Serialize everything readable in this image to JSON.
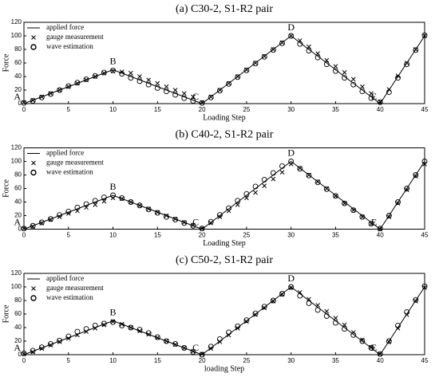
{
  "chart_data": [
    {
      "type": "line",
      "title": "(a) C30-2, S1-R2 pair",
      "x_label": "Loading Step",
      "y_label": "Force",
      "x": [
        0,
        1,
        2,
        3,
        4,
        5,
        6,
        7,
        8,
        9,
        10,
        11,
        12,
        13,
        14,
        15,
        16,
        17,
        18,
        19,
        20,
        21,
        22,
        23,
        24,
        25,
        26,
        27,
        28,
        29,
        30,
        31,
        32,
        33,
        34,
        35,
        36,
        37,
        38,
        39,
        40,
        41,
        42,
        43,
        44,
        45
      ],
      "series": [
        {
          "name": "applied force",
          "color": "#000000",
          "marker": "line",
          "values": [
            0,
            5,
            10,
            15,
            20,
            25,
            30,
            35,
            40,
            45,
            50,
            45,
            40,
            35,
            30,
            25,
            20,
            15,
            10,
            5,
            0,
            10,
            20,
            30,
            40,
            50,
            60,
            70,
            80,
            90,
            100,
            90,
            80,
            70,
            60,
            50,
            40,
            30,
            20,
            10,
            0,
            20,
            40,
            60,
            80,
            100
          ]
        },
        {
          "name": "gauge measurement",
          "color": "#000000",
          "marker": "x",
          "values": [
            2,
            5,
            10,
            15,
            20,
            25,
            30,
            35,
            40,
            45,
            48,
            47,
            45,
            40,
            35,
            30,
            25,
            20,
            15,
            10,
            2,
            10,
            20,
            30,
            40,
            50,
            60,
            70,
            80,
            90,
            100,
            93,
            84,
            74,
            64,
            55,
            46,
            36,
            25,
            15,
            3,
            21,
            41,
            60,
            80,
            100
          ]
        },
        {
          "name": "wave estimation",
          "color": "#000000",
          "marker": "o",
          "values": [
            1,
            4,
            9,
            14,
            20,
            26,
            31,
            36,
            41,
            46,
            49,
            44,
            38,
            33,
            28,
            23,
            18,
            13,
            8,
            4,
            1,
            9,
            19,
            29,
            39,
            49,
            59,
            69,
            79,
            89,
            100,
            88,
            78,
            68,
            58,
            48,
            38,
            28,
            18,
            8,
            2,
            17,
            38,
            58,
            79,
            101
          ]
        }
      ],
      "annotations": [
        {
          "text": "A",
          "x": 0,
          "y": 0
        },
        {
          "text": "B",
          "x": 10,
          "y": 50
        },
        {
          "text": "C",
          "x": 20,
          "y": 0
        },
        {
          "text": "D",
          "x": 30,
          "y": 100
        },
        {
          "text": "E",
          "x": 40,
          "y": 0
        }
      ],
      "xlim": [
        0,
        45
      ],
      "xticks": [
        0,
        5,
        10,
        15,
        20,
        25,
        30,
        35,
        40,
        45
      ],
      "ylim": [
        0,
        120
      ],
      "yticks": [
        0,
        20,
        40,
        60,
        80,
        100,
        120
      ],
      "legend": "upper left"
    },
    {
      "type": "line",
      "title": "(b) C40-2, S1-R2 pair",
      "x_label": "Loading Step",
      "y_label": "Force",
      "x": [
        0,
        1,
        2,
        3,
        4,
        5,
        6,
        7,
        8,
        9,
        10,
        11,
        12,
        13,
        14,
        15,
        16,
        17,
        18,
        19,
        20,
        21,
        22,
        23,
        24,
        25,
        26,
        27,
        28,
        29,
        30,
        31,
        32,
        33,
        34,
        35,
        36,
        37,
        38,
        39,
        40,
        41,
        42,
        43,
        44,
        45
      ],
      "series": [
        {
          "name": "applied force",
          "color": "#000000",
          "marker": "line",
          "values": [
            0,
            5,
            10,
            15,
            20,
            25,
            30,
            35,
            40,
            45,
            50,
            45,
            40,
            35,
            30,
            25,
            20,
            15,
            10,
            5,
            0,
            10,
            20,
            30,
            40,
            50,
            60,
            70,
            80,
            90,
            100,
            90,
            80,
            70,
            60,
            50,
            40,
            30,
            20,
            10,
            0,
            20,
            40,
            60,
            80,
            100
          ]
        },
        {
          "name": "gauge measurement",
          "color": "#000000",
          "marker": "x",
          "values": [
            1,
            4,
            9,
            14,
            18,
            23,
            27,
            32,
            36,
            41,
            46,
            45,
            40,
            35,
            30,
            25,
            20,
            15,
            10,
            6,
            1,
            9,
            18,
            27,
            36,
            46,
            54,
            64,
            74,
            84,
            96,
            90,
            80,
            70,
            60,
            49,
            38,
            28,
            18,
            8,
            0,
            18,
            38,
            58,
            78,
            96
          ]
        },
        {
          "name": "wave estimation",
          "color": "#000000",
          "marker": "o",
          "values": [
            1,
            5,
            10,
            15,
            21,
            26,
            32,
            37,
            42,
            47,
            50,
            46,
            40,
            35,
            29,
            24,
            18,
            14,
            9,
            5,
            1,
            11,
            21,
            31,
            42,
            52,
            63,
            73,
            83,
            93,
            100,
            89,
            79,
            69,
            59,
            49,
            38,
            28,
            18,
            8,
            1,
            20,
            40,
            60,
            80,
            100
          ]
        }
      ],
      "annotations": [
        {
          "text": "A",
          "x": 0,
          "y": 0
        },
        {
          "text": "B",
          "x": 10,
          "y": 50
        },
        {
          "text": "C",
          "x": 20,
          "y": 0
        },
        {
          "text": "D",
          "x": 30,
          "y": 100
        },
        {
          "text": "E",
          "x": 40,
          "y": 0
        }
      ],
      "xlim": [
        0,
        45
      ],
      "xticks": [
        0,
        5,
        10,
        15,
        20,
        25,
        30,
        35,
        40,
        45
      ],
      "ylim": [
        0,
        120
      ],
      "yticks": [
        0,
        20,
        40,
        60,
        80,
        100,
        120
      ],
      "legend": "upper left"
    },
    {
      "type": "line",
      "title": "(c) C50-2, S1-R2 pair",
      "x_label": "loading Step",
      "y_label": "Force",
      "x": [
        0,
        1,
        2,
        3,
        4,
        5,
        6,
        7,
        8,
        9,
        10,
        11,
        12,
        13,
        14,
        15,
        16,
        17,
        18,
        19,
        20,
        21,
        22,
        23,
        24,
        25,
        26,
        27,
        28,
        29,
        30,
        31,
        32,
        33,
        34,
        35,
        36,
        37,
        38,
        39,
        40,
        41,
        42,
        43,
        44,
        45
      ],
      "series": [
        {
          "name": "applied force",
          "color": "#000000",
          "marker": "line",
          "values": [
            0,
            5,
            10,
            15,
            20,
            25,
            30,
            35,
            40,
            45,
            50,
            45,
            40,
            35,
            30,
            25,
            20,
            15,
            10,
            5,
            0,
            10,
            20,
            30,
            40,
            50,
            60,
            70,
            80,
            90,
            100,
            90,
            80,
            70,
            60,
            50,
            40,
            30,
            20,
            10,
            0,
            20,
            40,
            60,
            80,
            100
          ]
        },
        {
          "name": "gauge measurement",
          "color": "#000000",
          "marker": "x",
          "values": [
            1,
            4,
            9,
            14,
            19,
            24,
            29,
            34,
            39,
            44,
            49,
            45,
            40,
            35,
            30,
            25,
            20,
            15,
            10,
            5,
            1,
            9,
            19,
            29,
            39,
            49,
            59,
            69,
            79,
            89,
            99,
            92,
            82,
            73,
            64,
            54,
            44,
            33,
            22,
            11,
            1,
            19,
            39,
            59,
            79,
            99
          ]
        },
        {
          "name": "wave estimation",
          "color": "#000000",
          "marker": "o",
          "values": [
            2,
            6,
            11,
            16,
            21,
            27,
            34,
            38,
            43,
            46,
            48,
            43,
            40,
            37,
            32,
            26,
            20,
            16,
            10,
            4,
            0,
            12,
            23,
            33,
            42,
            51,
            61,
            71,
            80,
            90,
            100,
            87,
            76,
            66,
            57,
            47,
            38,
            29,
            20,
            10,
            1,
            20,
            43,
            63,
            81,
            101
          ]
        }
      ],
      "annotations": [
        {
          "text": "A",
          "x": 0,
          "y": 0
        },
        {
          "text": "B",
          "x": 10,
          "y": 50
        },
        {
          "text": "C",
          "x": 20,
          "y": 0
        },
        {
          "text": "D",
          "x": 30,
          "y": 100
        },
        {
          "text": "E",
          "x": 40,
          "y": 0
        }
      ],
      "xlim": [
        0,
        45
      ],
      "xticks": [
        0,
        5,
        10,
        15,
        20,
        25,
        30,
        35,
        40,
        45
      ],
      "ylim": [
        0,
        120
      ],
      "yticks": [
        0,
        20,
        40,
        60,
        80,
        100,
        120
      ],
      "legend": "upper left"
    }
  ]
}
